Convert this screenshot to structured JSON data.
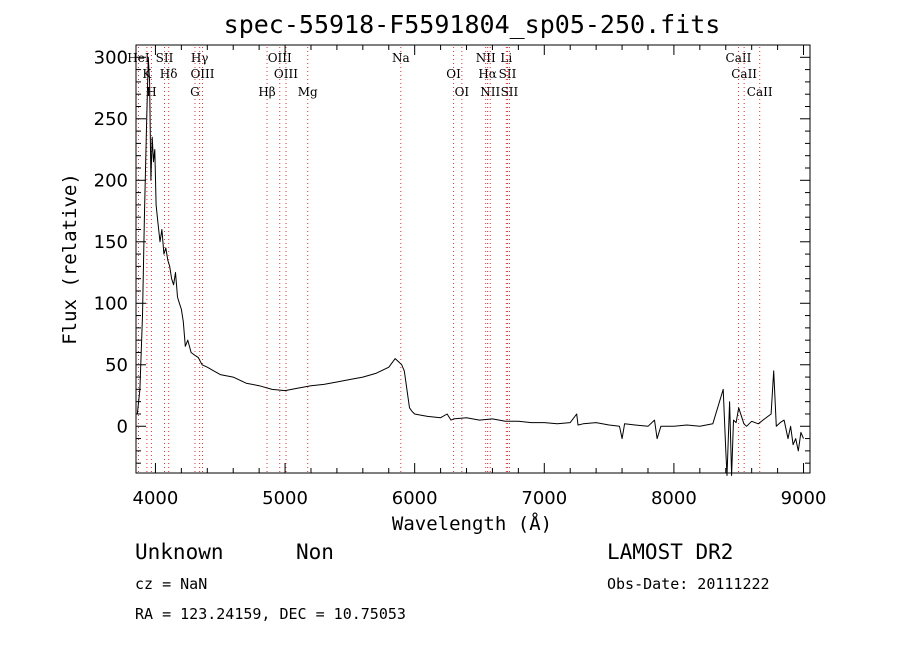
{
  "chart_data": {
    "type": "line",
    "title": "spec-55918-F5591804_sp05-250.fits",
    "xlabel": "Wavelength (Å)",
    "ylabel": "Flux (relative)",
    "xlim": [
      3850,
      9050
    ],
    "ylim": [
      -38,
      310
    ],
    "xticks": [
      4000,
      5000,
      6000,
      7000,
      8000,
      9000
    ],
    "yticks": [
      0,
      50,
      100,
      150,
      200,
      250,
      300
    ],
    "line_color": "#000000",
    "marker_color": "#e03030",
    "series": [
      {
        "x": [
          3860,
          3880,
          3900,
          3915,
          3930,
          3945,
          3955,
          3965,
          3975,
          3985,
          3995,
          4005,
          4020,
          4035,
          4050,
          4065,
          4080,
          4095,
          4110,
          4125,
          4140,
          4155,
          4170,
          4185,
          4200,
          4215,
          4230,
          4250,
          4275,
          4300,
          4330,
          4360,
          4400,
          4450,
          4500,
          4600,
          4700,
          4800,
          4900,
          5000,
          5100,
          5200,
          5300,
          5400,
          5500,
          5600,
          5700,
          5800,
          5850,
          5880,
          5900,
          5920,
          5940,
          5960,
          5980,
          6000,
          6050,
          6100,
          6200,
          6250,
          6280,
          6300,
          6400,
          6500,
          6600,
          6700,
          6800,
          6900,
          7000,
          7100,
          7200,
          7250,
          7260,
          7300,
          7400,
          7500,
          7580,
          7600,
          7620,
          7700,
          7800,
          7850,
          7870,
          7900,
          8000,
          8100,
          8200,
          8300,
          8380,
          8400,
          8410,
          8430,
          8445,
          8460,
          8480,
          8500,
          8540,
          8560,
          8600,
          8650,
          8700,
          8750,
          8770,
          8790,
          8820,
          8850,
          8880,
          8900,
          8920,
          8940,
          8960,
          8980,
          9000
        ],
        "y": [
          10,
          30,
          90,
          170,
          240,
          300,
          280,
          200,
          235,
          215,
          225,
          180,
          165,
          150,
          160,
          140,
          145,
          135,
          130,
          120,
          115,
          125,
          105,
          100,
          95,
          85,
          65,
          70,
          60,
          58,
          56,
          50,
          48,
          45,
          42,
          40,
          35,
          33,
          30,
          29,
          31,
          33,
          34,
          36,
          38,
          40,
          43,
          48,
          55,
          52,
          50,
          45,
          30,
          15,
          12,
          10,
          9,
          8,
          7,
          10,
          5,
          6,
          7,
          5,
          6,
          4,
          4,
          3,
          3,
          2,
          3,
          10,
          1,
          2,
          3,
          1,
          0,
          -10,
          2,
          1,
          0,
          5,
          -10,
          0,
          0,
          1,
          0,
          2,
          30,
          -20,
          -40,
          20,
          -40,
          5,
          3,
          15,
          2,
          0,
          4,
          2,
          6,
          10,
          45,
          0,
          3,
          5,
          -10,
          0,
          -15,
          -10,
          -20,
          -5,
          -10
        ]
      }
    ],
    "line_marks": [
      {
        "wavelength": 3869,
        "labels": [
          "HeI"
        ]
      },
      {
        "wavelength": 3934,
        "labels": [
          "K"
        ]
      },
      {
        "wavelength": 3969,
        "labels": [
          "H"
        ]
      },
      {
        "wavelength": 4070,
        "labels": [
          "SII"
        ]
      },
      {
        "wavelength": 4102,
        "labels": [
          "Hδ"
        ]
      },
      {
        "wavelength": 4305,
        "labels": [
          "G"
        ]
      },
      {
        "wavelength": 4341,
        "labels": [
          "Hγ"
        ]
      },
      {
        "wavelength": 4363,
        "labels": [
          "OIII"
        ]
      },
      {
        "wavelength": 4861,
        "labels": [
          "Hβ"
        ]
      },
      {
        "wavelength": 4959,
        "labels": [
          "OIII"
        ]
      },
      {
        "wavelength": 5007,
        "labels": [
          "OIII"
        ]
      },
      {
        "wavelength": 5175,
        "labels": [
          "Mg"
        ]
      },
      {
        "wavelength": 5893,
        "labels": [
          "Na"
        ]
      },
      {
        "wavelength": 6300,
        "labels": [
          "OI"
        ]
      },
      {
        "wavelength": 6364,
        "labels": [
          "OI"
        ]
      },
      {
        "wavelength": 6548,
        "labels": [
          "NII"
        ]
      },
      {
        "wavelength": 6563,
        "labels": [
          "Hα"
        ]
      },
      {
        "wavelength": 6583,
        "labels": [
          "NII"
        ]
      },
      {
        "wavelength": 6707,
        "labels": [
          "Li"
        ]
      },
      {
        "wavelength": 6716,
        "labels": [
          "SII"
        ]
      },
      {
        "wavelength": 6731,
        "labels": [
          "SII"
        ]
      },
      {
        "wavelength": 8498,
        "labels": [
          "CaII"
        ]
      },
      {
        "wavelength": 8542,
        "labels": [
          "CaII"
        ]
      },
      {
        "wavelength": 8662,
        "labels": [
          "CaII"
        ]
      }
    ]
  },
  "info": {
    "class": "Unknown",
    "subclass": "Non",
    "survey": "LAMOST DR2",
    "cz": "cz = NaN",
    "obs_date": "Obs-Date: 20111222",
    "coords": "RA = 123.24159, DEC =  10.75053"
  }
}
